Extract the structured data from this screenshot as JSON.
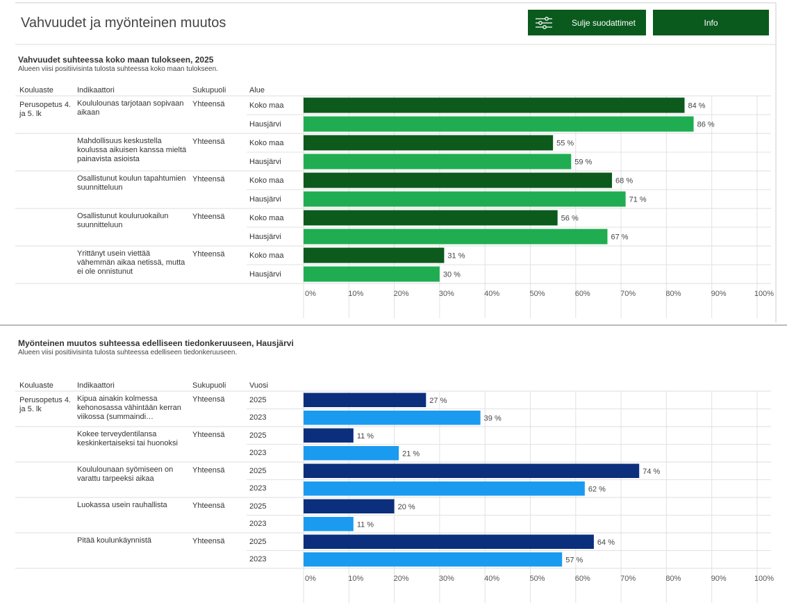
{
  "header": {
    "title": "Vahvuudet ja myönteinen muutos",
    "buttons": [
      "Sulje suodattimet",
      "Info"
    ]
  },
  "panels": [
    {
      "title": "Vahvuudet suhteessa koko maan tulokseen, 2025",
      "subtitle": "Alueen viisi positiivisinta tulosta suhteessa koko maan tulokseen.",
      "columns": [
        "Kouluaste",
        "Indikaattori",
        "Sukupuoli",
        "Alue"
      ],
      "level": "Perusopetus 4. ja 5. lk",
      "colors": [
        "#0c5a1c",
        "#20ad52"
      ],
      "rows": [
        {
          "indicator": "Koululounas tarjotaan sopivaan aikaan",
          "gender": "Yhteensä",
          "bars": [
            {
              "label": "Koko maa",
              "value": 84,
              "value_label": "84 %"
            },
            {
              "label": "Hausjärvi",
              "value": 86,
              "value_label": "86 %"
            }
          ]
        },
        {
          "indicator": "Mahdollisuus keskustella koulussa aikuisen kanssa mieltä painavista asioista",
          "gender": "Yhteensä",
          "bars": [
            {
              "label": "Koko maa",
              "value": 55,
              "value_label": "55 %"
            },
            {
              "label": "Hausjärvi",
              "value": 59,
              "value_label": "59 %"
            }
          ]
        },
        {
          "indicator": "Osallistunut koulun tapahtumien suunnitteluun",
          "gender": "Yhteensä",
          "bars": [
            {
              "label": "Koko maa",
              "value": 68,
              "value_label": "68 %"
            },
            {
              "label": "Hausjärvi",
              "value": 71,
              "value_label": "71 %"
            }
          ]
        },
        {
          "indicator": "Osallistunut kouluruokailun suunnitteluun",
          "gender": "Yhteensä",
          "bars": [
            {
              "label": "Koko maa",
              "value": 56,
              "value_label": "56 %"
            },
            {
              "label": "Hausjärvi",
              "value": 67,
              "value_label": "67 %"
            }
          ]
        },
        {
          "indicator": "Yrittänyt usein viettää vähemmän aikaa netissä, mutta ei ole onnistunut",
          "gender": "Yhteensä",
          "bars": [
            {
              "label": "Koko maa",
              "value": 31,
              "value_label": "31 %"
            },
            {
              "label": "Hausjärvi",
              "value": 30,
              "value_label": "30 %"
            }
          ]
        }
      ],
      "xlim": [
        0,
        100
      ],
      "xticks": [
        {
          "value": 0,
          "label": "0%"
        },
        {
          "value": 10,
          "label": "10%"
        },
        {
          "value": 20,
          "label": "20%"
        },
        {
          "value": 30,
          "label": "30%"
        },
        {
          "value": 40,
          "label": "40%"
        },
        {
          "value": 50,
          "label": "50%"
        },
        {
          "value": 60,
          "label": "60%"
        },
        {
          "value": 70,
          "label": "70%"
        },
        {
          "value": 80,
          "label": "80%"
        },
        {
          "value": 90,
          "label": "90%"
        },
        {
          "value": 100,
          "label": "100%"
        }
      ]
    },
    {
      "title": "Myönteinen muutos suhteessa edelliseen tiedonkeruuseen, Hausjärvi",
      "subtitle": "Alueen viisi positiivisinta tulosta suhteessa edelliseen tiedonkeruuseen.",
      "columns": [
        "Kouluaste",
        "Indikaattori",
        "Sukupuoli",
        "Vuosi"
      ],
      "level": "Perusopetus 4. ja 5. lk",
      "colors": [
        "#0b2f7c",
        "#1b9bf0"
      ],
      "rows": [
        {
          "indicator": "Kipua ainakin kolmessa kehonosassa vähintään kerran viikossa (summaindi…",
          "gender": "Yhteensä",
          "bars": [
            {
              "label": "2025",
              "value": 27,
              "value_label": "27 %"
            },
            {
              "label": "2023",
              "value": 39,
              "value_label": "39 %"
            }
          ]
        },
        {
          "indicator": "Kokee terveydentilansa keskinkertaiseksi tai huonoksi",
          "gender": "Yhteensä",
          "bars": [
            {
              "label": "2025",
              "value": 11,
              "value_label": "11 %"
            },
            {
              "label": "2023",
              "value": 21,
              "value_label": "21 %"
            }
          ]
        },
        {
          "indicator": "Koululounaan syömiseen on varattu tarpeeksi aikaa",
          "gender": "Yhteensä",
          "bars": [
            {
              "label": "2025",
              "value": 74,
              "value_label": "74 %"
            },
            {
              "label": "2023",
              "value": 62,
              "value_label": "62 %"
            }
          ]
        },
        {
          "indicator": "Luokassa usein rauhallista",
          "gender": "Yhteensä",
          "bars": [
            {
              "label": "2025",
              "value": 20,
              "value_label": "20 %"
            },
            {
              "label": "2023",
              "value": 11,
              "value_label": "11 %"
            }
          ]
        },
        {
          "indicator": "Pitää koulunkäynnistä",
          "gender": "Yhteensä",
          "bars": [
            {
              "label": "2025",
              "value": 64,
              "value_label": "64 %"
            },
            {
              "label": "2023",
              "value": 57,
              "value_label": "57 %"
            }
          ]
        }
      ],
      "xlim": [
        0,
        100
      ],
      "xticks": [
        {
          "value": 0,
          "label": "0%"
        },
        {
          "value": 10,
          "label": "10%"
        },
        {
          "value": 20,
          "label": "20%"
        },
        {
          "value": 30,
          "label": "30%"
        },
        {
          "value": 40,
          "label": "40%"
        },
        {
          "value": 50,
          "label": "50%"
        },
        {
          "value": 60,
          "label": "60%"
        },
        {
          "value": 70,
          "label": "70%"
        },
        {
          "value": 80,
          "label": "80%"
        },
        {
          "value": 90,
          "label": "90%"
        },
        {
          "value": 100,
          "label": "100%"
        }
      ]
    }
  ]
}
